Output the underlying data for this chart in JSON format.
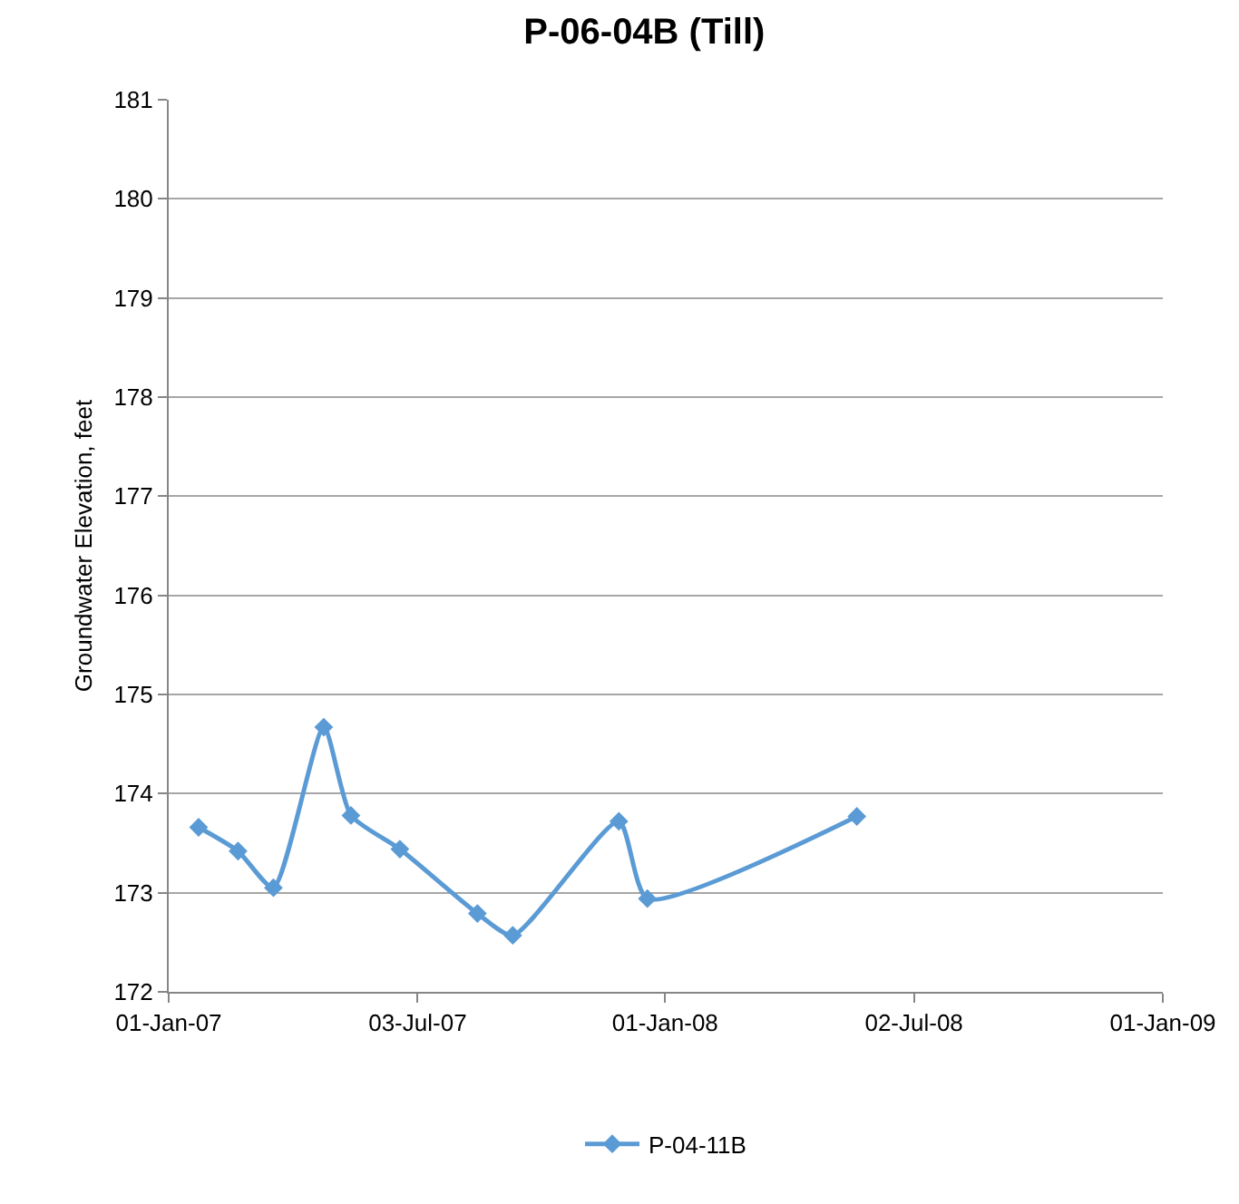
{
  "chart_data": {
    "type": "line",
    "title": "P-06-04B (Till)",
    "ylabel": "Groundwater Elevation, feet",
    "x": [
      "2007-01-23",
      "2007-02-21",
      "2007-03-19",
      "2007-04-25",
      "2007-05-15",
      "2007-06-20",
      "2007-08-16",
      "2007-09-11",
      "2007-11-28",
      "2007-12-19",
      "2008-05-21"
    ],
    "series": [
      {
        "name": "P-04-11B",
        "color": "#5b9bd5",
        "values": [
          173.66,
          173.42,
          173.05,
          174.67,
          173.78,
          173.44,
          172.79,
          172.57,
          173.72,
          172.94,
          173.77
        ]
      }
    ],
    "xlim": [
      "2007-01-01",
      "2009-01-01"
    ],
    "xticks": [
      {
        "value": "2007-01-01",
        "label": "01-Jan-07"
      },
      {
        "value": "2007-07-03",
        "label": "03-Jul-07"
      },
      {
        "value": "2008-01-01",
        "label": "01-Jan-08"
      },
      {
        "value": "2008-07-02",
        "label": "02-Jul-08"
      },
      {
        "value": "2009-01-01",
        "label": "01-Jan-09"
      }
    ],
    "ylim": [
      172,
      181
    ],
    "yticks": [
      172,
      173,
      174,
      175,
      176,
      177,
      178,
      179,
      180,
      181
    ],
    "grid": "y",
    "legend": "bottom",
    "marker": "diamond",
    "line_style": "solid"
  }
}
